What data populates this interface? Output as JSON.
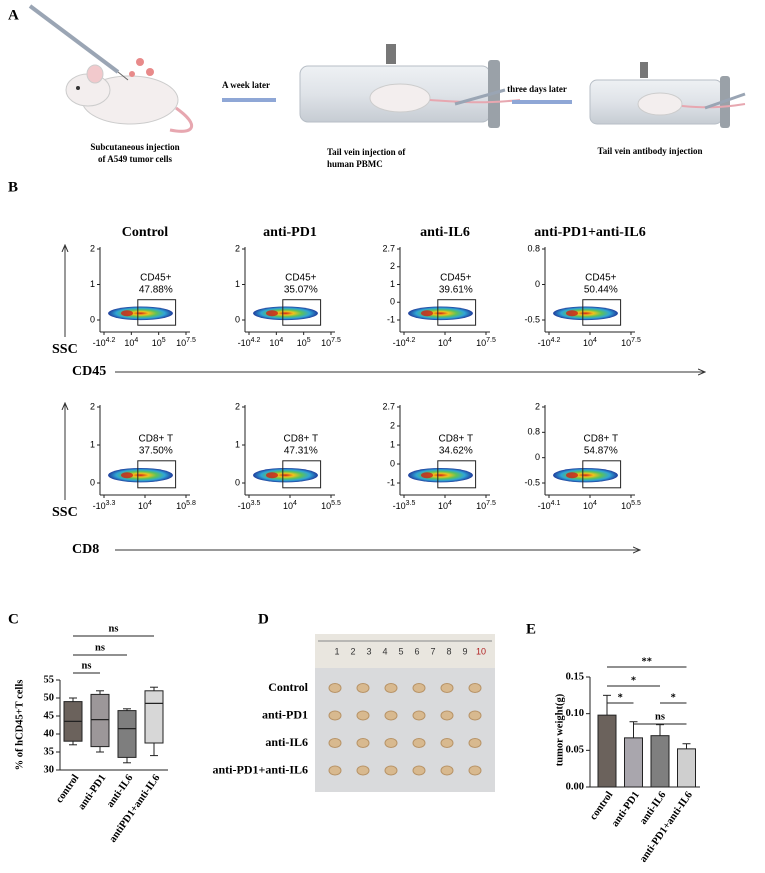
{
  "panel_a": {
    "label": "A",
    "caption_1": [
      "Subcutaneous injection",
      "of A549 tumor cells"
    ],
    "arrow_1": "A week later",
    "caption_2": [
      "Tail vein injection of",
      "human PBMC"
    ],
    "arrow_2": "three days later",
    "caption_3": "Tail vein antibody injection"
  },
  "panel_b": {
    "label": "B",
    "columns": [
      "Control",
      "anti-PD1",
      "anti-IL6",
      "anti-PD1+anti-IL6"
    ],
    "rows": [
      {
        "y_axis": "SSC",
        "x_axis": "CD45",
        "plots": [
          {
            "gate": "CD45+",
            "percent": "47.88%",
            "yticks": [
              "2",
              "1",
              "0"
            ],
            "xticks": [
              [
                "-10",
                "4.2"
              ],
              [
                "10",
                "4"
              ],
              [
                "10",
                "5"
              ],
              [
                "10",
                "7.5"
              ]
            ]
          },
          {
            "gate": "CD45+",
            "percent": "35.07%",
            "yticks": [
              "2",
              "1",
              "0"
            ],
            "xticks": [
              [
                "-10",
                "4.2"
              ],
              [
                "10",
                "4"
              ],
              [
                "10",
                "5"
              ],
              [
                "10",
                "7.5"
              ]
            ]
          },
          {
            "gate": "CD45+",
            "percent": "39.61%",
            "yticks": [
              "2.7",
              "2",
              "1",
              "0",
              "-1"
            ],
            "xticks": [
              [
                "-10",
                "4.2"
              ],
              [
                "10",
                "4"
              ],
              [
                "10",
                "7.5"
              ]
            ]
          },
          {
            "gate": "CD45+",
            "percent": "50.44%",
            "yticks": [
              "0.8",
              "0",
              "-0.5"
            ],
            "xticks": [
              [
                "-10",
                "4.2"
              ],
              [
                "10",
                "4"
              ],
              [
                "10",
                "7.5"
              ]
            ]
          }
        ]
      },
      {
        "y_axis": "SSC",
        "x_axis": "CD8",
        "plots": [
          {
            "gate": "CD8+ T",
            "percent": "37.50%",
            "yticks": [
              "2",
              "1",
              "0"
            ],
            "xticks": [
              [
                "-10",
                "3.3"
              ],
              [
                "10",
                "4"
              ],
              [
                "10",
                "5.8"
              ]
            ]
          },
          {
            "gate": "CD8+ T",
            "percent": "47.31%",
            "yticks": [
              "2",
              "1",
              "0"
            ],
            "xticks": [
              [
                "-10",
                "3.5"
              ],
              [
                "10",
                "4"
              ],
              [
                "10",
                "5.5"
              ]
            ]
          },
          {
            "gate": "CD8+ T",
            "percent": "34.62%",
            "yticks": [
              "2.7",
              "2",
              "1",
              "0",
              "-1"
            ],
            "xticks": [
              [
                "-10",
                "3.5"
              ],
              [
                "10",
                "4"
              ],
              [
                "10",
                "7.5"
              ]
            ]
          },
          {
            "gate": "CD8+ T",
            "percent": "54.87%",
            "yticks": [
              "2",
              "0.8",
              "0",
              "-0.5"
            ],
            "xticks": [
              [
                "-10",
                "4.1"
              ],
              [
                "10",
                "4"
              ],
              [
                "10",
                "5.5"
              ]
            ]
          }
        ]
      }
    ]
  },
  "panel_d": {
    "label": "D",
    "ruler": [
      1,
      2,
      3,
      4,
      5,
      6,
      7,
      8,
      9,
      10
    ],
    "rows": [
      "Control",
      "anti-PD1",
      "anti-IL6",
      "anti-PD1+anti-IL6"
    ]
  },
  "chart_data": [
    {
      "type": "box",
      "panel": "C",
      "ylabel": "% of hCD45+T cells",
      "categories": [
        "control",
        "anti-PD1",
        "anti-IL6",
        "antiPD1+anti-IL6"
      ],
      "min": [
        37,
        35,
        32,
        34
      ],
      "q1": [
        38,
        36.5,
        33.5,
        37.5
      ],
      "median": [
        43.5,
        44,
        41.5,
        48.5
      ],
      "q3": [
        49,
        51,
        46.5,
        52
      ],
      "max": [
        50,
        52,
        47,
        53
      ],
      "colors": [
        "#6b625c",
        "#9c9799",
        "#7e7e7e",
        "#d7d7d7"
      ],
      "ylim": [
        30,
        55
      ],
      "yticks": [
        30,
        35,
        40,
        45,
        50,
        55
      ],
      "significance": [
        {
          "label": "ns",
          "pair": [
            0,
            3
          ]
        },
        {
          "label": "ns",
          "pair": [
            0,
            2
          ]
        },
        {
          "label": "ns",
          "pair": [
            0,
            1
          ]
        }
      ]
    },
    {
      "type": "bar",
      "panel": "E",
      "ylabel": "tumor weight(g)",
      "categories": [
        "control",
        "anti-PD1",
        "anti-IL6",
        "anti-PD1+anti-IL6"
      ],
      "values": [
        0.098,
        0.067,
        0.07,
        0.052
      ],
      "errors": [
        0.027,
        0.022,
        0.015,
        0.007
      ],
      "colors": [
        "#6b625c",
        "#a9a6ad",
        "#7f7f7f",
        "#cfcfcf"
      ],
      "ylim": [
        0,
        0.15
      ],
      "yticks": [
        {
          "value": 0,
          "label": "0.00"
        },
        {
          "value": 0.05,
          "label": "0.05"
        },
        {
          "value": 0.1,
          "label": "0.10"
        },
        {
          "value": 0.15,
          "label": "0.15"
        }
      ],
      "significance": [
        {
          "label": "**",
          "pair": [
            0,
            3
          ]
        },
        {
          "label": "*",
          "pair": [
            0,
            2
          ]
        },
        {
          "label": "*",
          "pair": [
            0,
            1
          ]
        },
        {
          "label": "*",
          "pair": [
            2,
            3
          ]
        },
        {
          "label": "ns",
          "pair": [
            1,
            3
          ]
        }
      ]
    }
  ]
}
